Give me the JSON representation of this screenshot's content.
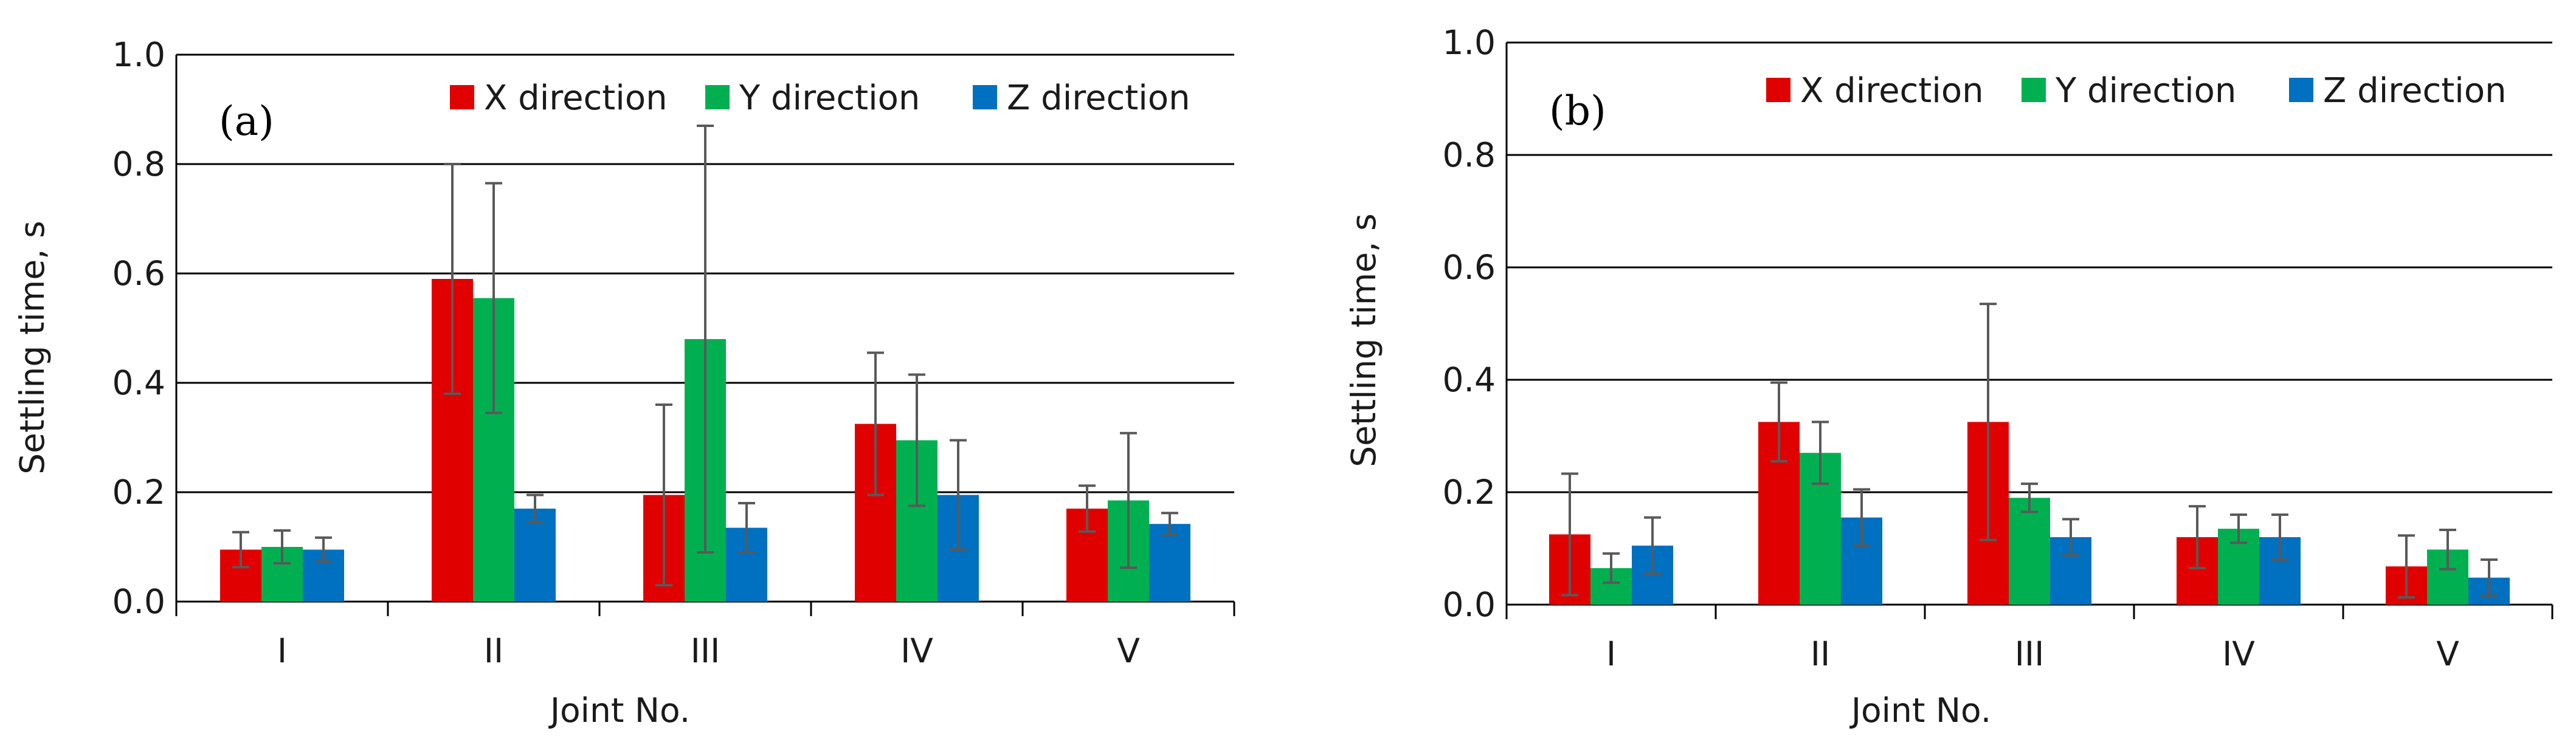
{
  "chart_data": [
    {
      "type": "bar",
      "panel_label": "(a)",
      "title": "",
      "xlabel": "Joint No.",
      "ylabel": "Settling time, s",
      "ylim": [
        0,
        1.0
      ],
      "y_ticks": [
        "0.0",
        "0.2",
        "0.4",
        "0.6",
        "0.8",
        "1.0"
      ],
      "grid": true,
      "legend_position": "top-right",
      "categories": [
        "I",
        "II",
        "III",
        "IV",
        "V"
      ],
      "series": [
        {
          "name": "X direction",
          "color": "#e00000",
          "values": [
            0.095,
            0.59,
            0.195,
            0.325,
            0.17
          ],
          "errors": [
            0.032,
            0.21,
            0.165,
            0.13,
            0.042
          ]
        },
        {
          "name": "Y direction",
          "color": "#00b050",
          "values": [
            0.1,
            0.555,
            0.48,
            0.295,
            0.185
          ],
          "errors": [
            0.03,
            0.21,
            0.39,
            0.12,
            0.123
          ]
        },
        {
          "name": "Z direction",
          "color": "#0070c0",
          "values": [
            0.095,
            0.17,
            0.135,
            0.195,
            0.142
          ],
          "errors": [
            0.022,
            0.025,
            0.045,
            0.1,
            0.02
          ]
        }
      ]
    },
    {
      "type": "bar",
      "panel_label": "(b)",
      "title": "",
      "xlabel": "Joint No.",
      "ylabel": "Settling time, s",
      "ylim": [
        0,
        1.0
      ],
      "y_ticks": [
        "0.0",
        "0.2",
        "0.4",
        "0.6",
        "0.8",
        "1.0"
      ],
      "grid": true,
      "legend_position": "top-right",
      "categories": [
        "I",
        "II",
        "III",
        "IV",
        "V"
      ],
      "series": [
        {
          "name": "X direction",
          "color": "#e00000",
          "values": [
            0.125,
            0.325,
            0.325,
            0.12,
            0.068
          ],
          "errors": [
            0.108,
            0.07,
            0.21,
            0.055,
            0.055
          ]
        },
        {
          "name": "Y direction",
          "color": "#00b050",
          "values": [
            0.065,
            0.27,
            0.19,
            0.135,
            0.098
          ],
          "errors": [
            0.026,
            0.055,
            0.025,
            0.025,
            0.035
          ]
        },
        {
          "name": "Z direction",
          "color": "#0070c0",
          "values": [
            0.105,
            0.155,
            0.12,
            0.12,
            0.048
          ],
          "errors": [
            0.05,
            0.05,
            0.032,
            0.04,
            0.032
          ]
        }
      ]
    }
  ]
}
